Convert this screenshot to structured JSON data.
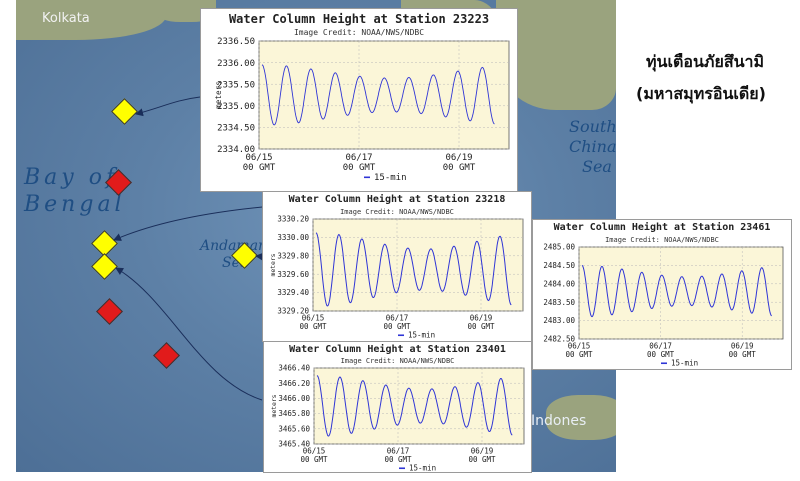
{
  "map": {
    "labels": {
      "kolkata": "Kolkata",
      "bay_line1": "Bay of",
      "bay_line2": "Bengal",
      "andaman_line1": "Andaman",
      "andaman_line2": "Sea",
      "south_china_1": "South",
      "south_china_2": "China",
      "south_china_3": "Sea",
      "indonesia": "Indones"
    }
  },
  "heading": {
    "line1": "ทุ่นเตือนภัยสึนามิ",
    "line2": "(มหาสมุทรอินเดีย)"
  },
  "chart_data": [
    {
      "type": "line",
      "title": "Water Column Height at Station 23223",
      "subtitle": "Image Credit: NOAA/NWS/NDBC",
      "ylabel": "meters",
      "ylim": [
        2334.0,
        2336.5
      ],
      "yticks": [
        "2336.50",
        "2336.00",
        "2335.50",
        "2335.00",
        "2334.50",
        "2334.00"
      ],
      "xticks": [
        [
          "06/15",
          "00 GMT"
        ],
        [
          "06/17",
          "00 GMT"
        ],
        [
          "06/19",
          "00 GMT"
        ]
      ],
      "legend": "15-min",
      "series": [
        {
          "name": "15-min",
          "x": [
            "06/15 00 GMT",
            "06/20 00 GMT"
          ],
          "mean": 2335.25,
          "amplitude": 0.7,
          "cycles": 9.5
        }
      ]
    },
    {
      "type": "line",
      "title": "Water Column Height at Station 23218",
      "subtitle": "Image Credit: NOAA/NWS/NDBC",
      "ylabel": "meters",
      "ylim": [
        3329.2,
        3330.2
      ],
      "yticks": [
        "3330.20",
        "3330.00",
        "3329.80",
        "3329.60",
        "3329.40",
        "3329.20"
      ],
      "xticks": [
        [
          "06/15",
          "00 GMT"
        ],
        [
          "06/17",
          "00 GMT"
        ],
        [
          "06/19",
          "00 GMT"
        ]
      ],
      "legend": "15-min",
      "series": [
        {
          "name": "15-min",
          "x": [
            "06/15 00 GMT",
            "06/20 00 GMT"
          ],
          "mean": 3329.65,
          "amplitude": 0.4,
          "cycles": 8.5
        }
      ]
    },
    {
      "type": "line",
      "title": "Water Column Height at Station 23461",
      "subtitle": "Image Credit: NOAA/NWS/NDBC",
      "ylabel": "",
      "ylim": [
        2482.5,
        2485.0
      ],
      "yticks": [
        "2485.00",
        "2484.50",
        "2484.00",
        "2483.50",
        "2483.00",
        "2482.50"
      ],
      "xticks": [
        [
          "06/15",
          "00 GMT"
        ],
        [
          "06/17",
          "00 GMT"
        ],
        [
          "06/19",
          "00 GMT"
        ]
      ],
      "legend": "15-min",
      "series": [
        {
          "name": "15-min",
          "x": [
            "06/15 00 GMT",
            "06/20 00 GMT"
          ],
          "mean": 2483.8,
          "amplitude": 0.7,
          "cycles": 9.5
        }
      ]
    },
    {
      "type": "line",
      "title": "Water Column Height at Station 23401",
      "subtitle": "Image Credit: NOAA/NWS/NDBC",
      "ylabel": "meters",
      "ylim": [
        3465.4,
        3466.4
      ],
      "yticks": [
        "3466.40",
        "3466.20",
        "3466.00",
        "3465.80",
        "3465.60",
        "3465.40"
      ],
      "xticks": [
        [
          "06/15",
          "00 GMT"
        ],
        [
          "06/17",
          "00 GMT"
        ],
        [
          "06/19",
          "00 GMT"
        ]
      ],
      "legend": "15-min",
      "series": [
        {
          "name": "15-min",
          "x": [
            "06/15 00 GMT",
            "06/20 00 GMT"
          ],
          "mean": 3465.9,
          "amplitude": 0.4,
          "cycles": 8.5
        }
      ]
    }
  ],
  "colors": {
    "plot_bg": "#fbf6d8",
    "line": "#2f35d6",
    "grid": "#b8b8b8",
    "buoy_yellow": "#ffff00",
    "buoy_red": "#e11b1b"
  }
}
